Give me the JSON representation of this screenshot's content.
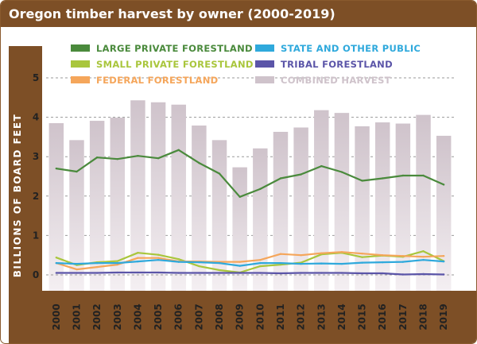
{
  "title": "Oregon timber harvest by owner (2000-2019)",
  "chart_data": {
    "type": "line",
    "title": "Oregon timber harvest by owner (2000-2019)",
    "xlabel": "",
    "ylabel": "BILLIONS OF BOARD FEET",
    "ylim": [
      0,
      5.5
    ],
    "yticks": [
      0,
      1,
      2,
      3,
      4,
      5
    ],
    "grid": "dashed horizontal",
    "categories": [
      "2000",
      "2001",
      "2002",
      "2003",
      "2004",
      "2005",
      "2006",
      "2007",
      "2008",
      "2009",
      "2010",
      "2011",
      "2012",
      "2013",
      "2014",
      "2015",
      "2016",
      "2017",
      "2018",
      "2019"
    ],
    "bars": {
      "name": "COMBINED HARVEST",
      "color": "#cfc3cb",
      "values": [
        3.85,
        3.42,
        3.91,
        3.99,
        4.43,
        4.38,
        4.32,
        3.79,
        3.42,
        2.73,
        3.21,
        3.63,
        3.74,
        4.18,
        4.11,
        3.77,
        3.87,
        3.84,
        4.06,
        3.53
      ]
    },
    "series": [
      {
        "name": "LARGE PRIVATE FORESTLAND",
        "color": "#4a8a3c",
        "values": [
          2.7,
          2.62,
          2.98,
          2.94,
          3.02,
          2.96,
          3.17,
          2.84,
          2.57,
          1.98,
          2.18,
          2.45,
          2.55,
          2.76,
          2.61,
          2.39,
          2.45,
          2.52,
          2.52,
          2.29
        ]
      },
      {
        "name": "SMALL PRIVATE FORESTLAND",
        "color": "#a9c63c",
        "values": [
          0.44,
          0.25,
          0.32,
          0.35,
          0.56,
          0.51,
          0.4,
          0.22,
          0.12,
          0.06,
          0.22,
          0.26,
          0.31,
          0.52,
          0.56,
          0.45,
          0.49,
          0.46,
          0.6,
          0.35
        ]
      },
      {
        "name": "FEDERAL FORESTLAND",
        "color": "#f5a65b",
        "values": [
          0.3,
          0.14,
          0.2,
          0.26,
          0.43,
          0.43,
          0.34,
          0.34,
          0.33,
          0.33,
          0.38,
          0.53,
          0.5,
          0.55,
          0.58,
          0.54,
          0.5,
          0.48,
          0.46,
          0.48
        ]
      },
      {
        "name": "STATE AND OTHER PUBLIC",
        "color": "#2fa9dc",
        "values": [
          0.3,
          0.28,
          0.3,
          0.3,
          0.34,
          0.38,
          0.33,
          0.32,
          0.3,
          0.23,
          0.3,
          0.3,
          0.28,
          0.29,
          0.28,
          0.31,
          0.32,
          0.33,
          0.38,
          0.34
        ]
      },
      {
        "name": "TRIBAL FORESTLAND",
        "color": "#5b55a8",
        "values": [
          0.05,
          0.05,
          0.05,
          0.06,
          0.06,
          0.06,
          0.05,
          0.05,
          0.05,
          0.05,
          0.05,
          0.04,
          0.05,
          0.05,
          0.05,
          0.04,
          0.04,
          0.01,
          0.02,
          0.01
        ]
      }
    ],
    "legend": {
      "position": "top",
      "order": [
        "LARGE PRIVATE FORESTLAND",
        "SMALL PRIVATE FORESTLAND",
        "FEDERAL FORESTLAND",
        "STATE AND OTHER PUBLIC",
        "TRIBAL FORESTLAND",
        "COMBINED HARVEST"
      ]
    }
  }
}
